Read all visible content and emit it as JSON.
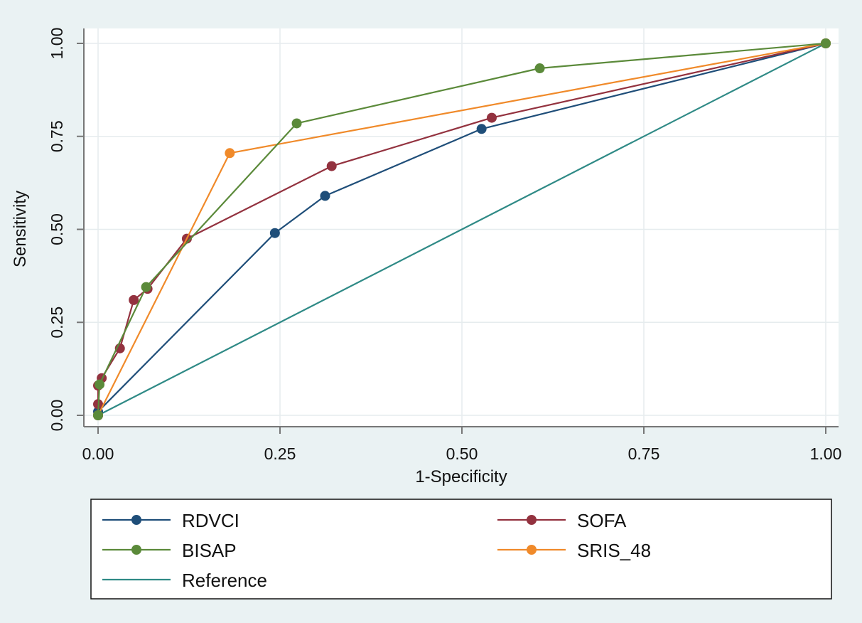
{
  "chart_data": {
    "type": "line",
    "title": "",
    "xlabel": "1-Specificity",
    "ylabel": "Sensitivity",
    "xlim": [
      0,
      1
    ],
    "ylim": [
      0,
      1
    ],
    "x_ticks": [
      "0.00",
      "0.25",
      "0.50",
      "0.75",
      "1.00"
    ],
    "y_ticks": [
      "0.00",
      "0.25",
      "0.50",
      "0.75",
      "1.00"
    ],
    "grid": true,
    "legend_position": "bottom",
    "series": [
      {
        "name": "RDVCI",
        "color": "#1f4e79",
        "markers": true,
        "x": [
          0.0,
          0.0,
          0.243,
          0.312,
          0.527,
          1.0
        ],
        "y": [
          0.0,
          0.01,
          0.49,
          0.59,
          0.77,
          1.0
        ]
      },
      {
        "name": "SOFA",
        "color": "#93323f",
        "markers": true,
        "x": [
          0.0,
          0.0,
          0.0,
          0.005,
          0.03,
          0.049,
          0.068,
          0.122,
          0.321,
          0.541,
          1.0
        ],
        "y": [
          0.0,
          0.03,
          0.08,
          0.1,
          0.18,
          0.31,
          0.34,
          0.475,
          0.67,
          0.8,
          1.0
        ]
      },
      {
        "name": "BISAP",
        "color": "#5b8a3a",
        "markers": true,
        "x": [
          0.0,
          0.002,
          0.066,
          0.273,
          0.607,
          1.0
        ],
        "y": [
          0.0,
          0.083,
          0.345,
          0.785,
          0.933,
          1.0
        ]
      },
      {
        "name": "SRIS_48",
        "color": "#f08a2a",
        "markers": true,
        "x": [
          0.0,
          0.181,
          1.0
        ],
        "y": [
          0.0,
          0.705,
          1.0
        ]
      },
      {
        "name": "Reference",
        "color": "#2f8a86",
        "markers": false,
        "x": [
          0.0,
          1.0
        ],
        "y": [
          0.0,
          1.0
        ]
      }
    ]
  }
}
